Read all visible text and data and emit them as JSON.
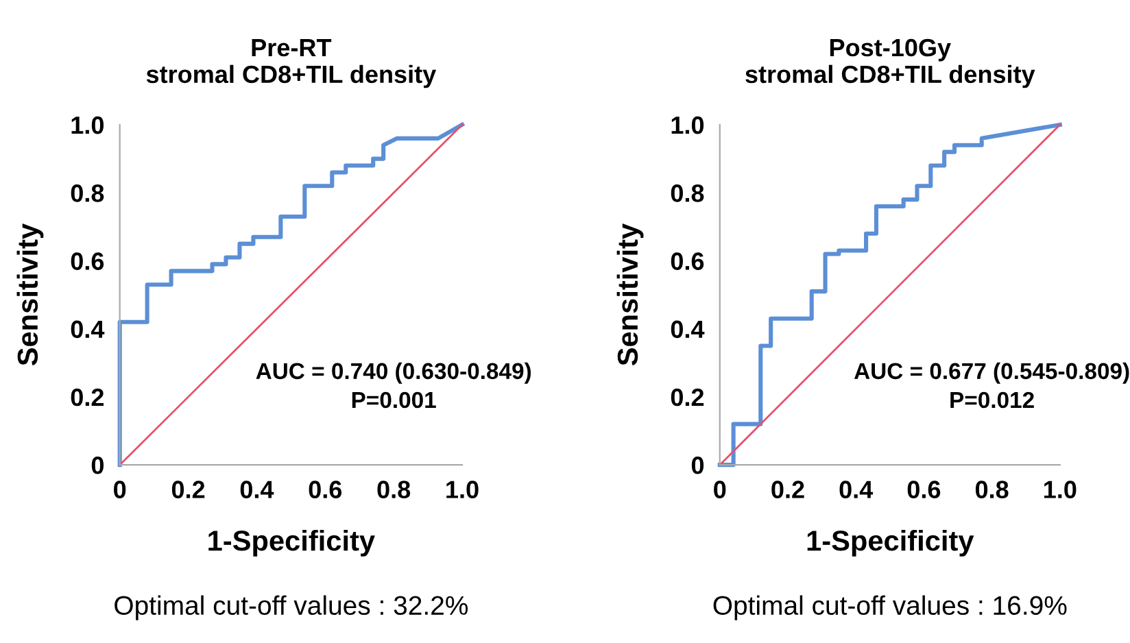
{
  "chart_data": [
    {
      "type": "line",
      "title": "Pre-RT\nstromal CD8+TIL density",
      "xlabel": "1-Specificity",
      "ylabel": "Sensitivity",
      "xlim": [
        0,
        1
      ],
      "ylim": [
        0,
        1
      ],
      "xticks": [
        0,
        0.2,
        0.4,
        0.6,
        0.8,
        {
          "value": 1,
          "label": "1.0"
        }
      ],
      "yticks": [
        0,
        0.2,
        0.4,
        0.6,
        0.8,
        {
          "value": 1,
          "label": "1.0"
        }
      ],
      "grid": false,
      "legend": false,
      "marker": "none",
      "line_style": "solid",
      "series": [
        {
          "color": "#5b8fd6",
          "x": [
            0,
            0,
            0.08,
            0.08,
            0.15,
            0.15,
            0.27,
            0.27,
            0.31,
            0.31,
            0.35,
            0.35,
            0.39,
            0.39,
            0.47,
            0.47,
            0.54,
            0.54,
            0.62,
            0.62,
            0.66,
            0.66,
            0.74,
            0.74,
            0.77,
            0.77,
            0.81,
            0.93,
            1
          ],
          "values": [
            0,
            0.42,
            0.42,
            0.53,
            0.53,
            0.57,
            0.57,
            0.59,
            0.59,
            0.61,
            0.61,
            0.65,
            0.65,
            0.67,
            0.67,
            0.73,
            0.73,
            0.82,
            0.82,
            0.86,
            0.86,
            0.88,
            0.88,
            0.9,
            0.9,
            0.94,
            0.96,
            0.96,
            1
          ]
        },
        {
          "color": "#e8506a",
          "x": [
            0,
            1
          ],
          "values": [
            0,
            1
          ]
        }
      ],
      "annotations": [
        "AUC = 0.740 (0.630-0.849)",
        "P=0.001",
        "Optimal cut-off values : 32.2%"
      ]
    },
    {
      "type": "line",
      "title": "Post-10Gy\nstromal CD8+TIL density",
      "xlabel": "1-Specificity",
      "ylabel": "Sensitivity",
      "xlim": [
        0,
        1
      ],
      "ylim": [
        0,
        1
      ],
      "xticks": [
        0,
        0.2,
        0.4,
        0.6,
        0.8,
        {
          "value": 1,
          "label": "1.0"
        }
      ],
      "yticks": [
        0,
        0.2,
        0.4,
        0.6,
        0.8,
        {
          "value": 1,
          "label": "1.0"
        }
      ],
      "grid": false,
      "legend": false,
      "marker": "none",
      "line_style": "solid",
      "series": [
        {
          "color": "#5b8fd6",
          "x": [
            0,
            0.04,
            0.04,
            0.12,
            0.12,
            0.15,
            0.15,
            0.27,
            0.27,
            0.31,
            0.31,
            0.35,
            0.35,
            0.43,
            0.43,
            0.46,
            0.46,
            0.54,
            0.54,
            0.58,
            0.58,
            0.62,
            0.62,
            0.66,
            0.66,
            0.69,
            0.69,
            0.77,
            0.77,
            1
          ],
          "values": [
            0,
            0,
            0.12,
            0.12,
            0.35,
            0.35,
            0.43,
            0.43,
            0.51,
            0.51,
            0.62,
            0.62,
            0.63,
            0.63,
            0.68,
            0.68,
            0.76,
            0.76,
            0.78,
            0.78,
            0.82,
            0.82,
            0.88,
            0.88,
            0.92,
            0.92,
            0.94,
            0.94,
            0.96,
            1
          ]
        },
        {
          "color": "#e8506a",
          "x": [
            0,
            1
          ],
          "values": [
            0,
            1
          ]
        }
      ],
      "annotations": [
        "AUC = 0.677 (0.545-0.809)",
        "P=0.012",
        "Optimal cut-off values : 16.9%"
      ]
    }
  ]
}
